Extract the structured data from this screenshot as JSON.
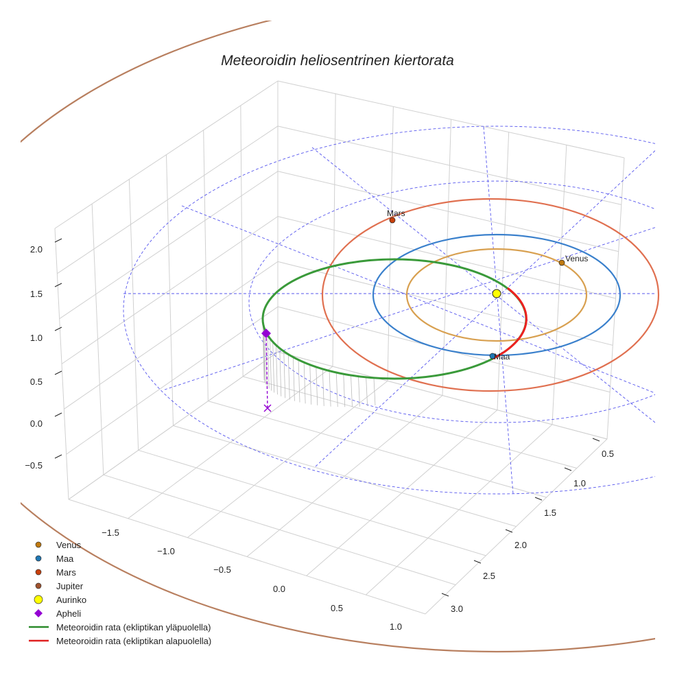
{
  "chart_data": {
    "type": "line3d",
    "title": "Meteoroidin heliosentrinen kiertorata",
    "x_ticks": [
      "−1.5",
      "−1.0",
      "−0.5",
      "0.0",
      "0.5",
      "1.0"
    ],
    "y_ticks": [
      "0.5",
      "1.0",
      "1.5",
      "2.0",
      "2.5",
      "3.0"
    ],
    "z_ticks": [
      "2.0",
      "1.5",
      "1.0",
      "0.5",
      "0.0",
      "−0.5"
    ],
    "orbit_radii_au": {
      "Venus": 0.72,
      "Maa": 1.0,
      "Mars": 1.52,
      "Jupiter": 5.2
    },
    "point_labels": {
      "Mars": "Mars",
      "Venus": "Venus",
      "Maa": "Maa"
    },
    "legend": [
      {
        "label": "Venus",
        "marker": "circle",
        "color": "#c07a10"
      },
      {
        "label": "Maa",
        "marker": "circle",
        "color": "#1f77b4"
      },
      {
        "label": "Mars",
        "marker": "circle",
        "color": "#c8400c"
      },
      {
        "label": "Jupiter",
        "marker": "circle",
        "color": "#a0522d"
      },
      {
        "label": "Aurinko",
        "marker": "circle",
        "color": "#ffff00"
      },
      {
        "label": "Apheli",
        "marker": "diamond",
        "color": "#9400d3"
      },
      {
        "label": "Meteoroidin rata (ekliptikan yläpuolella)",
        "marker": "line",
        "color": "#2a8a2a"
      },
      {
        "label": "Meteoroidin rata (ekliptikan alapuolella)",
        "marker": "line",
        "color": "#e02020"
      }
    ],
    "legend_position": "bottom-left"
  }
}
